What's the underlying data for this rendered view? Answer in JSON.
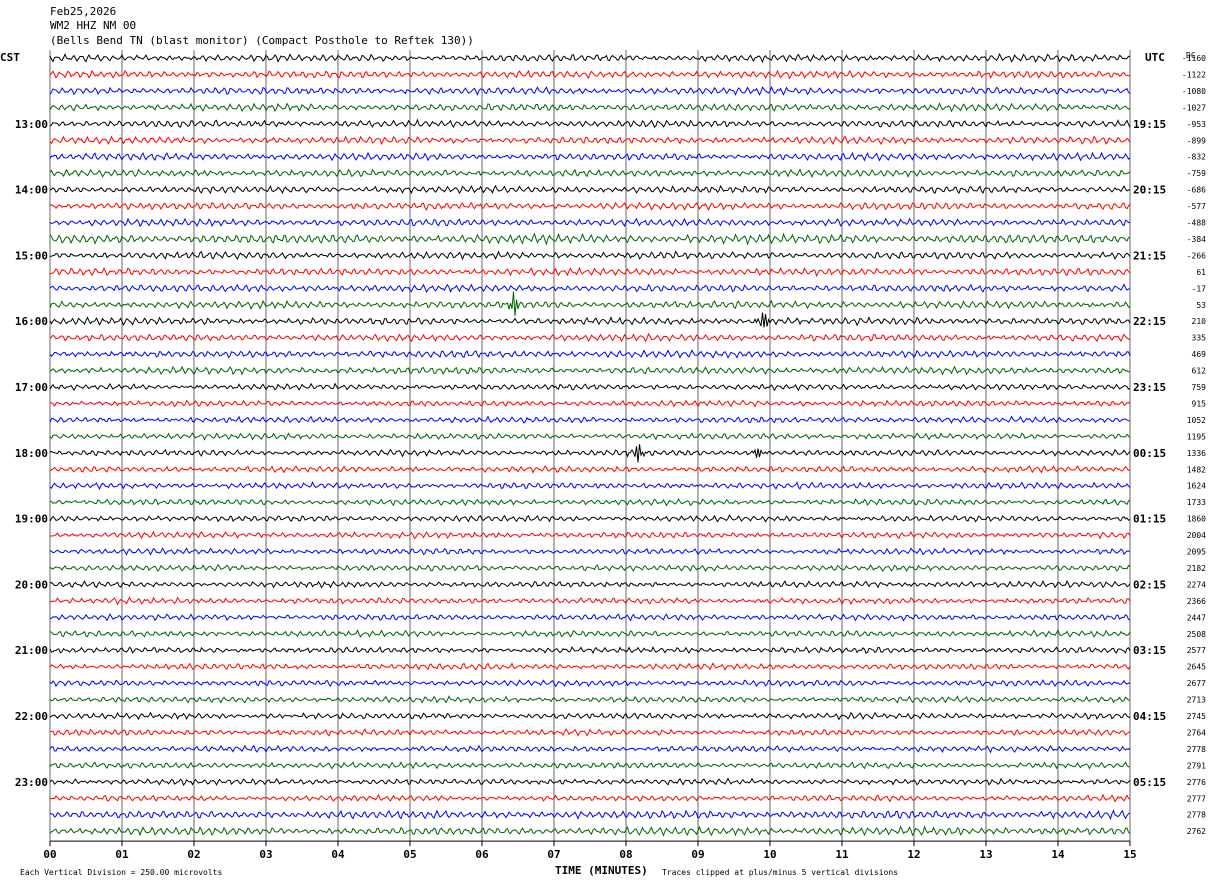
{
  "header": {
    "date": "Feb25,2026",
    "station": "WM2 HHZ NM 00",
    "description": "(Bells Bend TN (blast monitor) (Compact Posthole to Reftek 130))"
  },
  "left_zone_label": "CST",
  "right_zone_label": "UTC",
  "dc_label": "DC",
  "footer": {
    "scale": "Each Vertical Division =  250.00 microvolts",
    "xlabel": "TIME (MINUTES)",
    "clip_note": "Traces clipped at plus/minus 5 vertical divisions"
  },
  "colors": {
    "cycle": [
      "#000000",
      "#ff0000",
      "#0000ff",
      "#006400"
    ],
    "grid": "#000000"
  },
  "chart_data": {
    "type": "line",
    "title": "Feb25,2026",
    "xlabel": "TIME (MINUTES)",
    "xlim": [
      0,
      15
    ],
    "x_ticks": [
      "00",
      "01",
      "02",
      "03",
      "04",
      "05",
      "06",
      "07",
      "08",
      "09",
      "10",
      "11",
      "12",
      "13",
      "14",
      "15"
    ],
    "traces_per_hour": 4,
    "grid": true,
    "left_hour_labels": [
      "13:00",
      "14:00",
      "15:00",
      "16:00",
      "17:00",
      "18:00",
      "19:00",
      "20:00",
      "21:00",
      "22:00",
      "23:00"
    ],
    "right_hour_labels": [
      "19:15",
      "20:15",
      "21:15",
      "22:15",
      "23:15",
      "00:15",
      "01:15",
      "02:15",
      "03:15",
      "04:15",
      "05:15"
    ],
    "dc_offsets": [
      "-1160",
      "-1122",
      "-1080",
      "-1027",
      "-953",
      "-899",
      "-832",
      "-759",
      "-686",
      "-577",
      "-488",
      "-384",
      "-266",
      "61",
      "-17",
      "53",
      "210",
      "335",
      "469",
      "612",
      "759",
      "915",
      "1052",
      "1195",
      "1336",
      "1482",
      "1624",
      "1733",
      "1860",
      "2004",
      "2095",
      "2182",
      "2274",
      "2366",
      "2447",
      "2508",
      "2577",
      "2645",
      "2677",
      "2713",
      "2745",
      "2764",
      "2778",
      "2791",
      "2776",
      "2777",
      "2778",
      "2762"
    ],
    "events": [
      {
        "trace": 15,
        "minute": 6.45,
        "amplitude": 4
      },
      {
        "trace": 16,
        "minute": 9.9,
        "amplitude": 5
      },
      {
        "trace": 24,
        "minute": 8.15,
        "amplitude": 5
      },
      {
        "trace": 24,
        "minute": 9.85,
        "amplitude": 3
      }
    ]
  }
}
